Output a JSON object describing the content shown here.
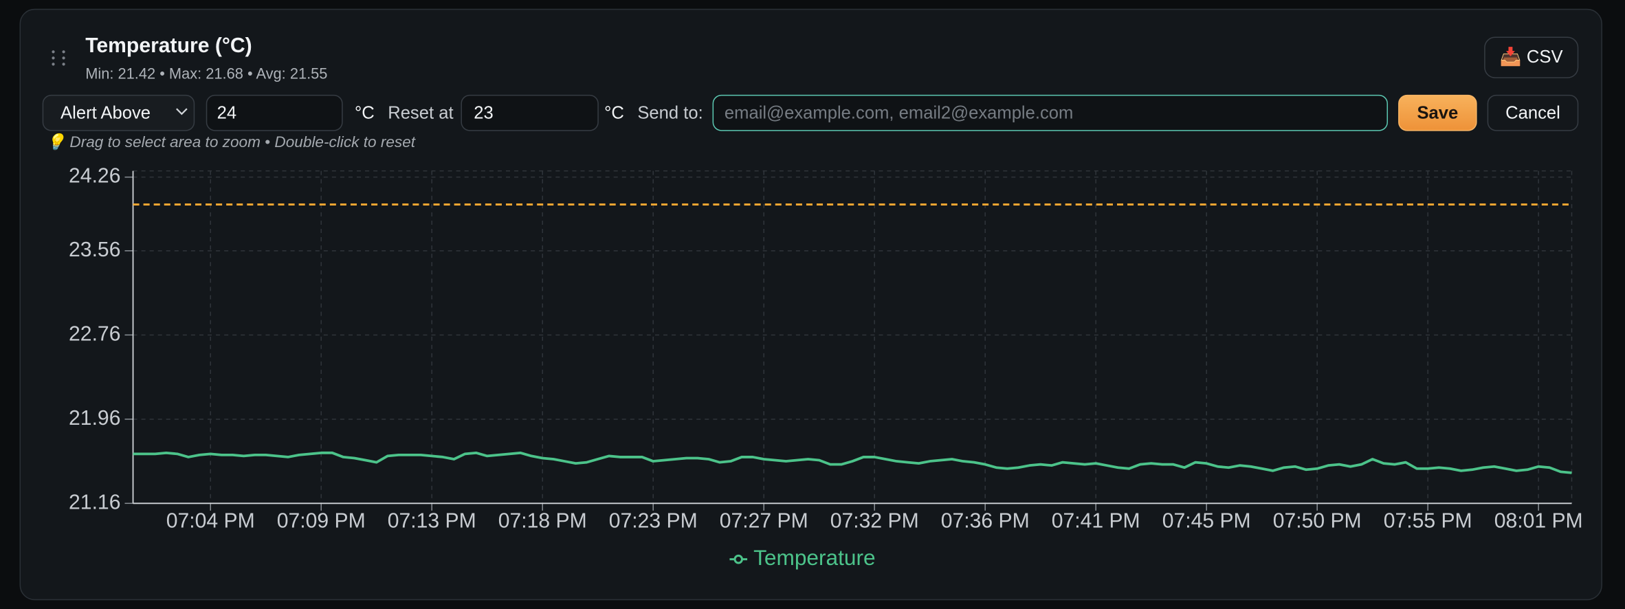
{
  "header": {
    "title": "Temperature (°C)",
    "stats": "Min: 21.42 • Max: 21.68 • Avg: 21.55",
    "csv_button": "📥 CSV"
  },
  "controls": {
    "alert_mode": "Alert Above",
    "alert_value": 24,
    "alert_unit": "°C",
    "reset_label": "Reset at",
    "reset_value": 23,
    "reset_unit": "°C",
    "send_label": "Send to:",
    "email_placeholder": "email@example.com, email2@example.com",
    "save": "Save",
    "cancel": "Cancel"
  },
  "hint": "💡 Drag to select area to zoom • Double-click to reset",
  "chart_data": {
    "type": "line",
    "categories": [
      null,
      null,
      null,
      null,
      null,
      null,
      null,
      "07:04 PM",
      null,
      null,
      null,
      null,
      null,
      null,
      null,
      null,
      null,
      "07:09 PM",
      null,
      null,
      null,
      null,
      null,
      null,
      null,
      null,
      null,
      "07:13 PM",
      null,
      null,
      null,
      null,
      null,
      null,
      null,
      null,
      null,
      "07:18 PM",
      null,
      null,
      null,
      null,
      null,
      null,
      null,
      null,
      null,
      "07:23 PM",
      null,
      null,
      null,
      null,
      null,
      null,
      null,
      null,
      null,
      "07:27 PM",
      null,
      null,
      null,
      null,
      null,
      null,
      null,
      null,
      null,
      "07:32 PM",
      null,
      null,
      null,
      null,
      null,
      null,
      null,
      null,
      null,
      "07:36 PM",
      null,
      null,
      null,
      null,
      null,
      null,
      null,
      null,
      null,
      "07:41 PM",
      null,
      null,
      null,
      null,
      null,
      null,
      null,
      null,
      null,
      "07:45 PM",
      null,
      null,
      null,
      null,
      null,
      null,
      null,
      null,
      null,
      "07:50 PM",
      null,
      null,
      null,
      null,
      null,
      null,
      null,
      null,
      null,
      "07:55 PM",
      null,
      null,
      null,
      null,
      null,
      null,
      null,
      null,
      null,
      "08:01 PM",
      null,
      null,
      null
    ],
    "series": [
      {
        "name": "Temperature",
        "color": "#4cc38a",
        "values": [
          21.63,
          21.63,
          21.63,
          21.64,
          21.63,
          21.6,
          21.62,
          21.63,
          21.62,
          21.62,
          21.61,
          21.62,
          21.62,
          21.61,
          21.6,
          21.62,
          21.63,
          21.64,
          21.64,
          21.6,
          21.59,
          21.57,
          21.55,
          21.61,
          21.62,
          21.62,
          21.62,
          21.61,
          21.6,
          21.58,
          21.63,
          21.64,
          21.61,
          21.62,
          21.63,
          21.64,
          21.61,
          21.59,
          21.58,
          21.56,
          21.54,
          21.55,
          21.58,
          21.61,
          21.6,
          21.6,
          21.6,
          21.56,
          21.57,
          21.58,
          21.59,
          21.59,
          21.58,
          21.55,
          21.56,
          21.6,
          21.6,
          21.58,
          21.57,
          21.56,
          21.57,
          21.58,
          21.57,
          21.53,
          21.53,
          21.56,
          21.6,
          21.6,
          21.58,
          21.56,
          21.55,
          21.54,
          21.56,
          21.57,
          21.58,
          21.56,
          21.55,
          21.53,
          21.5,
          21.49,
          21.5,
          21.52,
          21.53,
          21.52,
          21.55,
          21.54,
          21.53,
          21.54,
          21.52,
          21.5,
          21.49,
          21.53,
          21.54,
          21.53,
          21.53,
          21.5,
          21.55,
          21.54,
          21.51,
          21.5,
          21.52,
          21.51,
          21.49,
          21.47,
          21.5,
          21.51,
          21.48,
          21.49,
          21.52,
          21.53,
          21.51,
          21.53,
          21.58,
          21.54,
          21.53,
          21.55,
          21.49,
          21.49,
          21.5,
          21.49,
          21.47,
          21.48,
          21.5,
          21.51,
          21.49,
          21.47,
          21.48,
          21.51,
          21.5,
          21.46,
          21.45
        ]
      }
    ],
    "ylim": [
      21.16,
      24.26
    ],
    "yticks": [
      21.16,
      21.96,
      22.76,
      23.56,
      24.26
    ],
    "grid": true,
    "threshold_color": "#f0a532",
    "legend": "bottom"
  }
}
